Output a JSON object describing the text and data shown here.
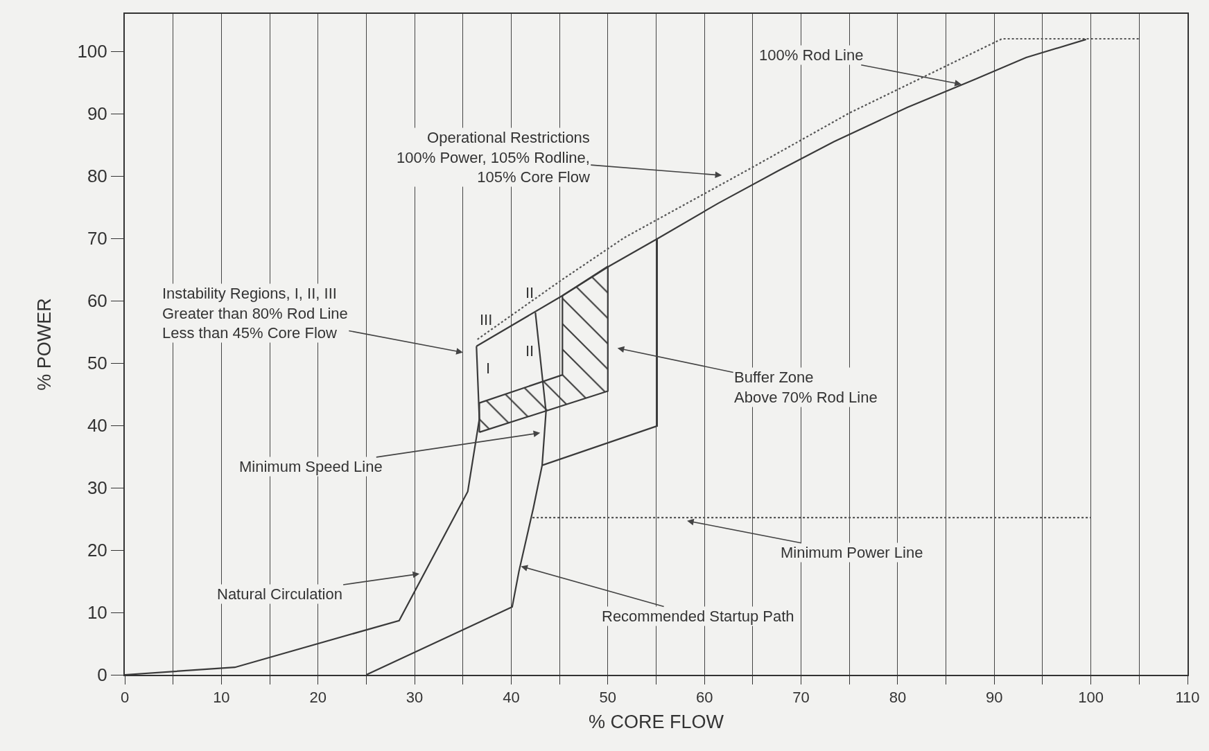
{
  "chart_data": {
    "type": "line",
    "xlabel": "% CORE FLOW",
    "ylabel": "% POWER",
    "xlim": [
      0,
      110
    ],
    "ylim": [
      0,
      106
    ],
    "xticks": [
      0,
      {
        "value": 5,
        "label": null
      },
      10,
      {
        "value": 15,
        "label": null
      },
      20,
      {
        "value": 25,
        "label": null
      },
      30,
      {
        "value": 35,
        "label": null
      },
      40,
      {
        "value": 45,
        "label": null
      },
      50,
      {
        "value": 55,
        "label": null
      },
      60,
      {
        "value": 65,
        "label": null
      },
      70,
      {
        "value": 75,
        "label": null
      },
      80,
      {
        "value": 85,
        "label": null
      },
      90,
      {
        "value": 95,
        "label": null
      },
      100,
      {
        "value": 105,
        "label": null
      },
      110
    ],
    "yticks": [
      0,
      10,
      20,
      30,
      40,
      50,
      60,
      70,
      80,
      90,
      100
    ],
    "grid": "x",
    "marker": "none",
    "line_style": "solid",
    "series": [
      {
        "color": "#3a3a3a",
        "x": [
          0,
          11.4,
          28.4,
          35.5,
          36.7,
          36.4
        ],
        "values": [
          0,
          1.2,
          8.7,
          29.4,
          41,
          52.7
        ]
      },
      {
        "color": "#3a3a3a",
        "x": [
          36.4,
          45.3,
          50.1,
          55.2,
          61.4,
          67.6,
          73.4,
          81,
          88,
          93.3,
          99.5
        ],
        "values": [
          52.7,
          60.8,
          65.5,
          70,
          75.6,
          80.8,
          85.5,
          91,
          95.5,
          99,
          101.9
        ]
      },
      {
        "color": "#555555",
        "line_style": "dotted",
        "x": [
          36.5,
          45.2,
          51.7,
          65.1,
          75,
          90.8,
          105
        ],
        "values": [
          53.8,
          63.3,
          70.1,
          81.5,
          90.1,
          102,
          102
        ]
      },
      {
        "color": "#3a3a3a",
        "x": [
          25,
          40.1,
          40.8,
          42.3,
          43.2,
          55.1,
          55.1
        ],
        "values": [
          0,
          10.9,
          16.6,
          26.8,
          33.6,
          39.9,
          70
        ]
      },
      {
        "color": "#3a3a3a",
        "x": [
          43.2,
          43.6,
          42.5
        ],
        "values": [
          33.6,
          42.2,
          58.1
        ]
      },
      {
        "type": "area",
        "color": "#3a3a3a",
        "x": [
          36.7,
          50,
          50,
          45.3,
          45.3,
          36.7,
          36.7
        ],
        "values": [
          38.9,
          45.5,
          65.5,
          60.8,
          48.1,
          43.6,
          38.9
        ]
      },
      {
        "color": "#555555",
        "line_style": "dotted",
        "x": [
          42.2,
          100
        ],
        "values": [
          25.2,
          25.2
        ]
      }
    ],
    "annotations": [
      {
        "text": "100% Rod Line",
        "x": 86.6,
        "y": 94.7
      },
      "Operational Restrictions\n100% Power, 105% Rodline,\n105% Core Flow",
      "Instability Regions, I, II, III\nGreater than 80% Rod Line\nLess than 45% Core Flow",
      "Buffer Zone\nAbove 70% Rod Line",
      "Minimum Speed Line",
      {
        "text": "Minimum Power Line",
        "x": 58.2,
        "y": 24.7
      },
      "Natural Circulation",
      {
        "text": "Recommended Startup Path",
        "x": 41,
        "y": 17.4
      },
      "I",
      "II",
      "II",
      "III"
    ]
  }
}
